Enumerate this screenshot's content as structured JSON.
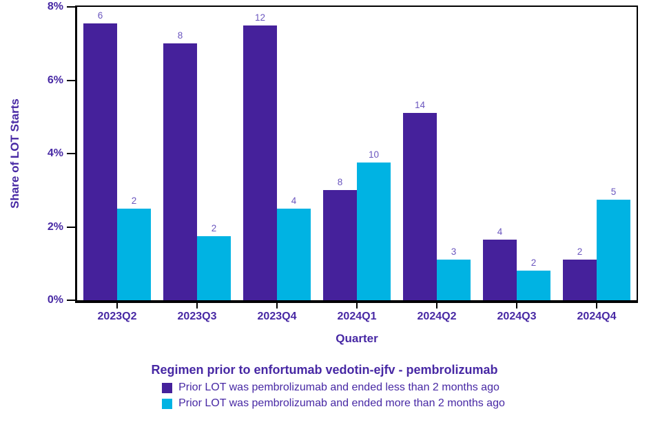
{
  "colors": {
    "series1": "#45219B",
    "series2": "#00B3E3",
    "axis_text": "#4728A4",
    "data_label_text": "#6A55BE",
    "axis_line": "#000000",
    "background": "#FFFFFF"
  },
  "chart_data": {
    "type": "bar",
    "title": "",
    "xlabel": "Quarter",
    "ylabel": "Share of LOT Starts",
    "categories": [
      "2023Q2",
      "2023Q3",
      "2023Q4",
      "2024Q1",
      "2024Q2",
      "2024Q3",
      "2024Q4"
    ],
    "ylim": [
      0,
      8
    ],
    "y_ticks": [
      0,
      2,
      4,
      6,
      8
    ],
    "y_tick_labels": [
      "0%",
      "2%",
      "4%",
      "6%",
      "8%"
    ],
    "grid": false,
    "legend_position": "bottom",
    "legend_title": "Regimen prior to enfortumab vedotin-ejfv - pembrolizumab",
    "series": [
      {
        "name": "Prior LOT was pembrolizumab and ended less than 2 months ago",
        "color": "#45219B",
        "values_pct": [
          7.55,
          7.0,
          7.5,
          3.0,
          5.1,
          1.65,
          1.1
        ],
        "bar_labels": [
          "6",
          "8",
          "12",
          "8",
          "14",
          "4",
          "2"
        ]
      },
      {
        "name": "Prior LOT was pembrolizumab and ended more than 2 months ago",
        "color": "#00B3E3",
        "values_pct": [
          2.5,
          1.75,
          2.5,
          3.75,
          1.1,
          0.8,
          2.75
        ],
        "bar_labels": [
          "2",
          "2",
          "4",
          "10",
          "3",
          "2",
          "5"
        ]
      }
    ]
  }
}
